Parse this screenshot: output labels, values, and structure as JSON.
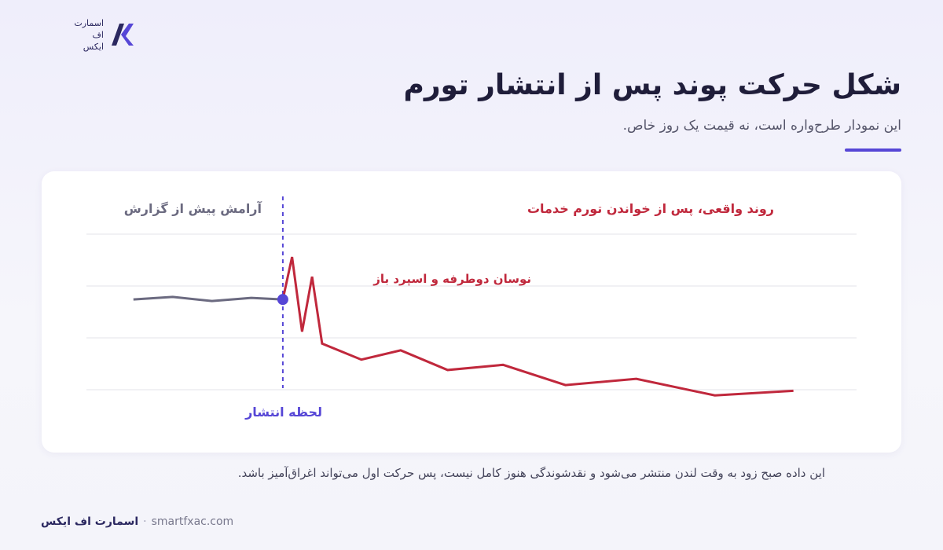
{
  "logo": {
    "lines": [
      "اسمارت",
      "اف",
      "ایکس"
    ]
  },
  "header": {
    "title": "شکل حرکت پوند پس از انتشار تورم",
    "subtitle": "این نمودار طرح‌واره است، نه قیمت یک روز خاص."
  },
  "chart_data": {
    "type": "line",
    "xlim": [
      0,
      100
    ],
    "ylim": [
      0,
      3
    ],
    "grid": true,
    "series": [
      {
        "name": "آرامش پیش از گزارش",
        "color": "#6b6a80",
        "x": [
          6.1,
          11.2,
          16.3,
          21.4,
          25.5
        ],
        "values": [
          1.74,
          1.79,
          1.71,
          1.77,
          1.74
        ]
      },
      {
        "name": "روند واقعی، پس از خواندن تورم خدمات",
        "color": "#c0283c",
        "x": [
          25.5,
          26.7,
          28.0,
          29.3,
          30.6,
          35.7,
          40.8,
          46.9,
          54.1,
          62.2,
          71.4,
          81.6,
          91.8
        ],
        "values": [
          1.74,
          2.56,
          1.12,
          2.18,
          0.89,
          0.58,
          0.76,
          0.38,
          0.48,
          0.09,
          0.21,
          -0.11,
          -0.02
        ]
      }
    ],
    "event_x": 25.5,
    "event_label": "لحظه انتشار",
    "event_color": "#5646d6",
    "annotation": "نوسان دوطرفه و اسپرد باز"
  },
  "footer": {
    "note": "این داده صبح زود به وقت لندن منتشر می‌شود و نقدشوندگی هنوز کامل نیست، پس حرکت اول می‌تواند اغراق‌آمیز باشد.",
    "brand": "اسمارت اف ایکس",
    "url": "smartfxac.com"
  }
}
